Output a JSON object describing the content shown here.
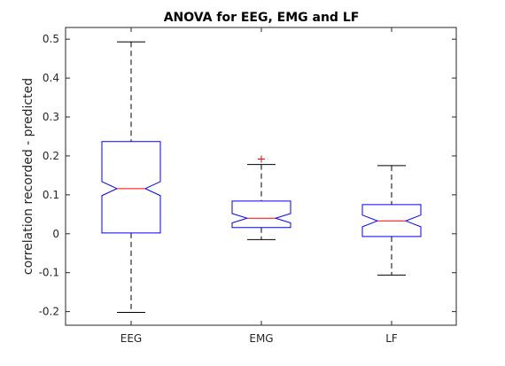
{
  "chart_data": {
    "type": "boxplot",
    "title": "ANOVA for EEG, EMG and LF",
    "xlabel": "",
    "ylabel": "correlation recorded - predicted",
    "ylim": [
      -0.235,
      0.53
    ],
    "yticks": [
      -0.2,
      -0.1,
      0,
      0.1,
      0.2,
      0.3,
      0.4,
      0.5
    ],
    "ytick_labels": [
      "-0.2",
      "-0.1",
      "0",
      "0.1",
      "0.2",
      "0.3",
      "0.4",
      "0.5"
    ],
    "categories": [
      "EEG",
      "EMG",
      "LF"
    ],
    "boxes": [
      {
        "name": "EEG",
        "whisker_low": -0.202,
        "q1": 0.002,
        "median": 0.116,
        "q3": 0.237,
        "whisker_high": 0.493,
        "notch_low": 0.098,
        "notch_high": 0.134,
        "outliers": []
      },
      {
        "name": "EMG",
        "whisker_low": -0.015,
        "q1": 0.016,
        "median": 0.04,
        "q3": 0.084,
        "whisker_high": 0.178,
        "notch_low": 0.028,
        "notch_high": 0.052,
        "outliers": [
          0.192
        ]
      },
      {
        "name": "LF",
        "whisker_low": -0.106,
        "q1": -0.007,
        "median": 0.033,
        "q3": 0.075,
        "whisker_high": 0.175,
        "notch_low": 0.018,
        "notch_high": 0.048,
        "outliers": []
      }
    ],
    "grid": false,
    "colors": {
      "box": "#0000ff",
      "median": "#ff0000",
      "whisker": "#000000",
      "outlier": "#ff0000",
      "axis": "#262626"
    }
  }
}
